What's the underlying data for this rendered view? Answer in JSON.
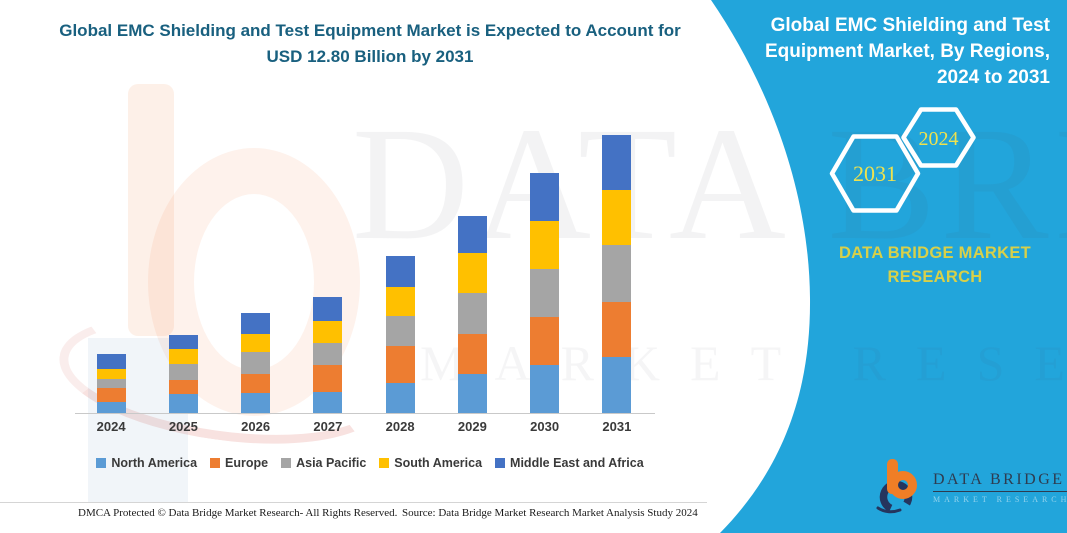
{
  "header": {
    "title": "Global EMC Shielding and Test Equipment Market is Expected to Account for USD 12.80 Billion by 2031"
  },
  "side_panel": {
    "heading": "Global EMC Shielding and Test Equipment Market, By Regions, 2024 to 2031",
    "hexagons": [
      {
        "year": "2031"
      },
      {
        "year": "2024"
      }
    ],
    "brand_caption": "DATA BRIDGE MARKET RESEARCH"
  },
  "chart_data": {
    "type": "bar",
    "stacked": true,
    "title": "Global EMC Shielding and Test Equipment Market, By Regions, 2024 to 2031",
    "units": "USD Billion",
    "ylim": [
      0,
      13
    ],
    "grid": false,
    "legend_position": "bottom",
    "categories": [
      "2024",
      "2025",
      "2026",
      "2027",
      "2028",
      "2029",
      "2030",
      "2031"
    ],
    "series": [
      {
        "name": "North America",
        "color": "#5B9BD5",
        "values": [
          0.51,
          0.88,
          0.93,
          0.99,
          1.37,
          1.82,
          2.21,
          2.56
        ]
      },
      {
        "name": "Europe",
        "color": "#ED7D31",
        "values": [
          0.62,
          0.62,
          0.88,
          1.23,
          1.74,
          1.8,
          2.21,
          2.57
        ]
      },
      {
        "name": "Asia Pacific",
        "color": "#A5A5A5",
        "values": [
          0.43,
          0.77,
          1.0,
          1.0,
          1.36,
          1.9,
          2.2,
          2.62
        ]
      },
      {
        "name": "South America",
        "color": "#FFC000",
        "values": [
          0.49,
          0.69,
          0.85,
          1.0,
          1.34,
          1.85,
          2.24,
          2.54
        ]
      },
      {
        "name": "Middle East and Africa",
        "color": "#4472C4",
        "values": [
          0.67,
          0.65,
          0.93,
          1.12,
          1.42,
          1.73,
          2.19,
          2.5
        ]
      }
    ],
    "annotation": "USD 12.80 Billion by 2031"
  },
  "watermark": {
    "line1": "DATA BRIDGE",
    "line2": "MARKET RESEARCH"
  },
  "footer": {
    "dmca": "DMCA Protected © Data Bridge Market Research-  All Rights Reserved.",
    "source": "Source: Data Bridge Market Research  Market Analysis Study 2024"
  },
  "logo": {
    "name": "DATA BRIDGE",
    "tagline": "MARKET RESEARCH"
  },
  "colors": {
    "panel_blue": "#22A5DB",
    "accent_yellow": "#EFE24E",
    "caption_yellow": "#D8D049",
    "title_teal": "#19607F",
    "axis_gray": "#C9C9C9"
  }
}
